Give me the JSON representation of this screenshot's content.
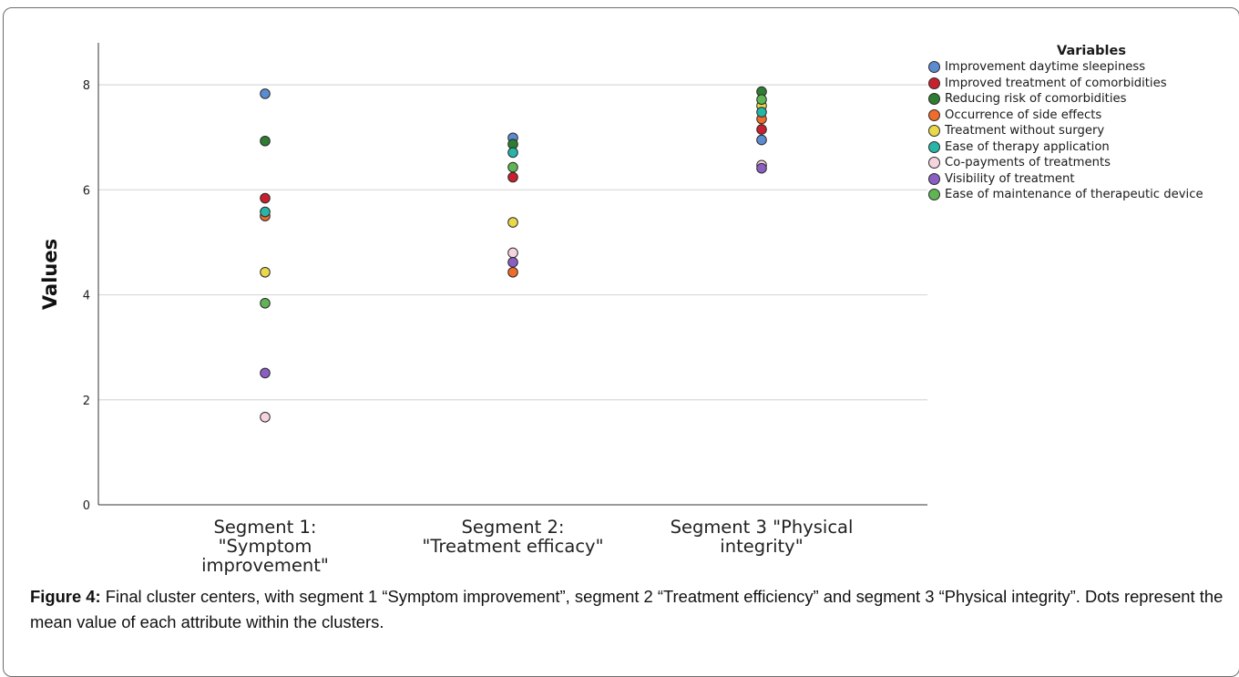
{
  "chart_data": {
    "type": "scatter",
    "ylabel": "Values",
    "xlabel": "",
    "ylim": [
      0,
      8.8
    ],
    "yticks": [
      0,
      2,
      4,
      6,
      8
    ],
    "grid": true,
    "legend_placement": "right",
    "legend_title": "Variables",
    "categories": [
      "Segment 1: \"Symptom improvement\"",
      "Segment 2: \"Treatment efficacy\"",
      "Segment 3 \"Physical integrity\""
    ],
    "category_lines": [
      [
        "Segment 1:",
        "\"Symptom",
        "improvement\""
      ],
      [
        "Segment 2:",
        "\"Treatment efficacy\""
      ],
      [
        "Segment 3 \"Physical",
        "integrity\""
      ]
    ],
    "series": [
      {
        "name": "Improvement daytime sleepiness",
        "color": "#5b8bd0",
        "values": [
          7.83,
          6.99,
          6.95
        ]
      },
      {
        "name": "Improved treatment of comorbidities",
        "color": "#c8202e",
        "values": [
          5.84,
          6.24,
          7.15
        ]
      },
      {
        "name": "Reducing risk of comorbidities",
        "color": "#2e7d32",
        "values": [
          6.93,
          6.87,
          7.87
        ]
      },
      {
        "name": "Occurrence of side effects",
        "color": "#ef6c2a",
        "values": [
          5.5,
          4.43,
          7.35
        ]
      },
      {
        "name": "Treatment without surgery",
        "color": "#e8d84a",
        "values": [
          4.43,
          5.38,
          7.6
        ]
      },
      {
        "name": "Ease of therapy application",
        "color": "#26b5a6",
        "values": [
          5.58,
          6.71,
          7.48
        ]
      },
      {
        "name": "Co-payments of treatments",
        "color": "#f6d4de",
        "values": [
          1.67,
          4.8,
          6.47
        ]
      },
      {
        "name": "Visibility of treatment",
        "color": "#8a5ec2",
        "values": [
          2.51,
          4.62,
          6.41
        ]
      },
      {
        "name": "Ease of maintenance of therapeutic device",
        "color": "#5fb454",
        "values": [
          3.84,
          6.43,
          7.72
        ]
      }
    ]
  },
  "caption": {
    "label": "Figure 4:",
    "text": " Final cluster centers, with segment 1 “Symptom improvement”, segment 2 “Treatment efficiency” and segment 3 “Physical integrity”. Dots represent the mean value of each attribute within the clusters."
  }
}
